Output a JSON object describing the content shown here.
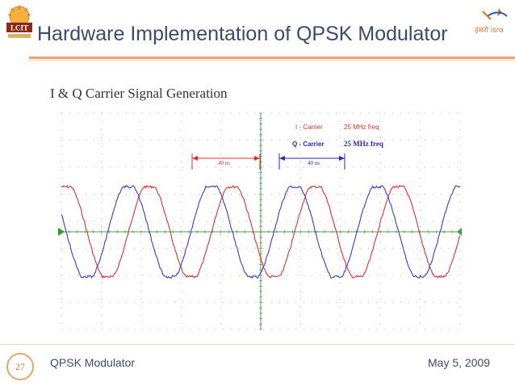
{
  "header": {
    "title": "Hardware Implementation of QPSK Modulator",
    "left_logo_text": "LCIT",
    "right_logo_text": "इसरो isro"
  },
  "subtitle": "I & Q Carrier Signal Generation",
  "scope": {
    "legend": {
      "i_label": "I - Carrier",
      "i_freq": "25 MHz freq",
      "q_label": "Q - Carrier",
      "q_freq": "25 MHz freq"
    },
    "annotation_left": "40 ns",
    "annotation_right": "40 ns"
  },
  "chart_data": {
    "type": "line",
    "title": "",
    "xlabel": "",
    "ylabel": "",
    "x_unit": "ns",
    "xlim": [
      0,
      192
    ],
    "ylim": [
      -1.2,
      1.2
    ],
    "grid": true,
    "series": [
      {
        "name": "I - Carrier",
        "color": "#e03030",
        "frequency_mhz": 25,
        "period_ns": 40,
        "amplitude": 1,
        "phase_deg": 0
      },
      {
        "name": "Q - Carrier",
        "color": "#3a3ad0",
        "frequency_mhz": 25,
        "period_ns": 40,
        "amplitude": 1,
        "phase_deg": 90
      }
    ]
  },
  "footer": {
    "page_number": "27",
    "left_text": "QPSK Modulator",
    "right_text": "May 5, 2009"
  },
  "colors": {
    "title": "#3b4b6b",
    "accent_rule": "#e8a46a",
    "i_carrier": "#e03030",
    "q_carrier": "#3a3ad0",
    "scope_axis": "#4a9e4a"
  }
}
